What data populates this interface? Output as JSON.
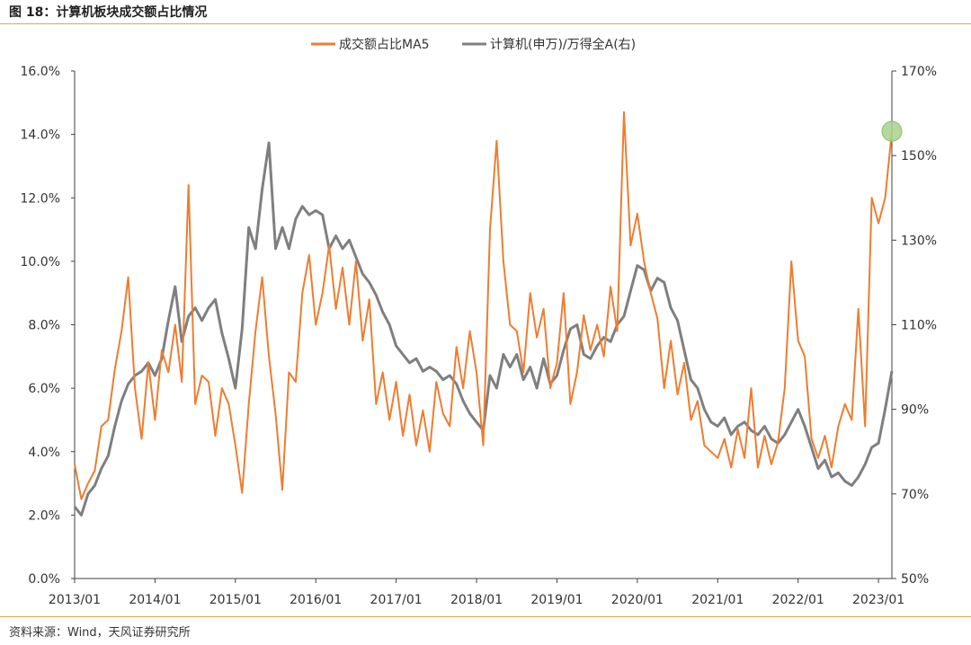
{
  "figure": {
    "title": "图 18：计算机板块成交额占比情况",
    "source": "资料来源：Wind，天风证券研究所"
  },
  "colors": {
    "series_orange": "#ed7d31",
    "series_gray": "#7f7f7f",
    "axis": "#404040",
    "rule": "#e0a84a",
    "highlight": "#a9d18e"
  },
  "chart_data": {
    "type": "line",
    "title": "",
    "xlabel": "",
    "ylabel": "",
    "legend_position": "top-center",
    "grid": false,
    "x_ticks": [
      "2013/01",
      "2014/01",
      "2015/01",
      "2016/01",
      "2017/01",
      "2018/01",
      "2019/01",
      "2020/01",
      "2021/01",
      "2022/01",
      "2023/01"
    ],
    "x_range": [
      "2013/01",
      "2023/03"
    ],
    "y_left": {
      "min": 0,
      "max": 16,
      "ticks": [
        "0.0%",
        "2.0%",
        "4.0%",
        "6.0%",
        "8.0%",
        "10.0%",
        "12.0%",
        "14.0%",
        "16.0%"
      ]
    },
    "y_right": {
      "min": 50,
      "max": 170,
      "ticks": [
        "50%",
        "70%",
        "90%",
        "110%",
        "130%",
        "150%",
        "170%"
      ]
    },
    "series": [
      {
        "name": "成交额占比MA5",
        "axis": "left",
        "unit": "%",
        "points": [
          [
            "2013/01",
            3.6
          ],
          [
            "2013/02",
            2.5
          ],
          [
            "2013/03",
            3.0
          ],
          [
            "2013/04",
            3.4
          ],
          [
            "2013/05",
            4.8
          ],
          [
            "2013/06",
            5.0
          ],
          [
            "2013/07",
            6.6
          ],
          [
            "2013/08",
            7.8
          ],
          [
            "2013/09",
            9.5
          ],
          [
            "2013/10",
            6.0
          ],
          [
            "2013/11",
            4.4
          ],
          [
            "2013/12",
            6.8
          ],
          [
            "2014/01",
            5.0
          ],
          [
            "2014/02",
            7.2
          ],
          [
            "2014/03",
            6.5
          ],
          [
            "2014/04",
            8.0
          ],
          [
            "2014/05",
            6.2
          ],
          [
            "2014/06",
            12.4
          ],
          [
            "2014/07",
            5.5
          ],
          [
            "2014/08",
            6.4
          ],
          [
            "2014/09",
            6.2
          ],
          [
            "2014/10",
            4.5
          ],
          [
            "2014/11",
            6.0
          ],
          [
            "2014/12",
            5.5
          ],
          [
            "2015/01",
            4.2
          ],
          [
            "2015/02",
            2.7
          ],
          [
            "2015/03",
            5.5
          ],
          [
            "2015/04",
            7.8
          ],
          [
            "2015/05",
            9.5
          ],
          [
            "2015/06",
            7.0
          ],
          [
            "2015/07",
            5.2
          ],
          [
            "2015/08",
            2.8
          ],
          [
            "2015/09",
            6.5
          ],
          [
            "2015/10",
            6.2
          ],
          [
            "2015/11",
            9.0
          ],
          [
            "2015/12",
            10.2
          ],
          [
            "2016/01",
            8.0
          ],
          [
            "2016/02",
            9.0
          ],
          [
            "2016/03",
            10.5
          ],
          [
            "2016/04",
            8.5
          ],
          [
            "2016/05",
            9.8
          ],
          [
            "2016/06",
            8.0
          ],
          [
            "2016/07",
            10.0
          ],
          [
            "2016/08",
            7.5
          ],
          [
            "2016/09",
            8.8
          ],
          [
            "2016/10",
            5.5
          ],
          [
            "2016/11",
            6.5
          ],
          [
            "2016/12",
            5.0
          ],
          [
            "2017/01",
            6.2
          ],
          [
            "2017/02",
            4.5
          ],
          [
            "2017/03",
            5.8
          ],
          [
            "2017/04",
            4.2
          ],
          [
            "2017/05",
            5.3
          ],
          [
            "2017/06",
            4.0
          ],
          [
            "2017/07",
            6.2
          ],
          [
            "2017/08",
            5.2
          ],
          [
            "2017/09",
            4.8
          ],
          [
            "2017/10",
            7.3
          ],
          [
            "2017/11",
            6.0
          ],
          [
            "2017/12",
            7.8
          ],
          [
            "2018/01",
            6.5
          ],
          [
            "2018/02",
            4.2
          ],
          [
            "2018/03",
            11.0
          ],
          [
            "2018/04",
            13.8
          ],
          [
            "2018/05",
            10.0
          ],
          [
            "2018/06",
            8.0
          ],
          [
            "2018/07",
            7.8
          ],
          [
            "2018/08",
            6.5
          ],
          [
            "2018/09",
            9.0
          ],
          [
            "2018/10",
            7.6
          ],
          [
            "2018/11",
            8.5
          ],
          [
            "2018/12",
            6.0
          ],
          [
            "2019/01",
            6.8
          ],
          [
            "2019/02",
            9.0
          ],
          [
            "2019/03",
            5.5
          ],
          [
            "2019/04",
            6.5
          ],
          [
            "2019/05",
            8.3
          ],
          [
            "2019/06",
            7.2
          ],
          [
            "2019/07",
            8.0
          ],
          [
            "2019/08",
            7.0
          ],
          [
            "2019/09",
            9.2
          ],
          [
            "2019/10",
            7.8
          ],
          [
            "2019/11",
            14.7
          ],
          [
            "2019/12",
            10.5
          ],
          [
            "2020/01",
            11.5
          ],
          [
            "2020/02",
            10.0
          ],
          [
            "2020/03",
            9.0
          ],
          [
            "2020/04",
            8.2
          ],
          [
            "2020/05",
            6.0
          ],
          [
            "2020/06",
            7.5
          ],
          [
            "2020/07",
            5.8
          ],
          [
            "2020/08",
            6.8
          ],
          [
            "2020/09",
            5.0
          ],
          [
            "2020/10",
            5.6
          ],
          [
            "2020/11",
            4.2
          ],
          [
            "2020/12",
            4.0
          ],
          [
            "2021/01",
            3.8
          ],
          [
            "2021/02",
            4.4
          ],
          [
            "2021/03",
            3.5
          ],
          [
            "2021/04",
            4.7
          ],
          [
            "2021/05",
            3.8
          ],
          [
            "2021/06",
            6.0
          ],
          [
            "2021/07",
            3.5
          ],
          [
            "2021/08",
            4.5
          ],
          [
            "2021/09",
            3.6
          ],
          [
            "2021/10",
            4.3
          ],
          [
            "2021/11",
            6.0
          ],
          [
            "2021/12",
            10.0
          ],
          [
            "2022/01",
            7.5
          ],
          [
            "2022/02",
            7.0
          ],
          [
            "2022/03",
            4.4
          ],
          [
            "2022/04",
            3.8
          ],
          [
            "2022/05",
            4.5
          ],
          [
            "2022/06",
            3.5
          ],
          [
            "2022/07",
            4.8
          ],
          [
            "2022/08",
            5.5
          ],
          [
            "2022/09",
            5.0
          ],
          [
            "2022/10",
            8.5
          ],
          [
            "2022/11",
            4.8
          ],
          [
            "2022/12",
            12.0
          ],
          [
            "2023/01",
            11.2
          ],
          [
            "2023/02",
            12.0
          ],
          [
            "2023/03",
            14.1
          ]
        ]
      },
      {
        "name": "计算机(申万)/万得全A(右)",
        "axis": "right",
        "unit": "%",
        "points": [
          [
            "2013/01",
            67
          ],
          [
            "2013/02",
            65
          ],
          [
            "2013/03",
            70
          ],
          [
            "2013/04",
            72
          ],
          [
            "2013/05",
            76
          ],
          [
            "2013/06",
            79
          ],
          [
            "2013/07",
            86
          ],
          [
            "2013/08",
            92
          ],
          [
            "2013/09",
            96
          ],
          [
            "2013/10",
            98
          ],
          [
            "2013/11",
            99
          ],
          [
            "2013/12",
            101
          ],
          [
            "2014/01",
            98
          ],
          [
            "2014/02",
            102
          ],
          [
            "2014/03",
            111
          ],
          [
            "2014/04",
            119
          ],
          [
            "2014/05",
            106
          ],
          [
            "2014/06",
            112
          ],
          [
            "2014/07",
            114
          ],
          [
            "2014/08",
            111
          ],
          [
            "2014/09",
            114
          ],
          [
            "2014/10",
            116
          ],
          [
            "2014/11",
            108
          ],
          [
            "2014/12",
            102
          ],
          [
            "2015/01",
            95
          ],
          [
            "2015/02",
            109
          ],
          [
            "2015/03",
            133
          ],
          [
            "2015/04",
            128
          ],
          [
            "2015/05",
            142
          ],
          [
            "2015/06",
            153
          ],
          [
            "2015/07",
            128
          ],
          [
            "2015/08",
            133
          ],
          [
            "2015/09",
            128
          ],
          [
            "2015/10",
            135
          ],
          [
            "2015/11",
            138
          ],
          [
            "2015/12",
            136
          ],
          [
            "2016/01",
            137
          ],
          [
            "2016/02",
            136
          ],
          [
            "2016/03",
            128
          ],
          [
            "2016/04",
            131
          ],
          [
            "2016/05",
            128
          ],
          [
            "2016/06",
            130
          ],
          [
            "2016/07",
            126
          ],
          [
            "2016/08",
            122
          ],
          [
            "2016/09",
            120
          ],
          [
            "2016/10",
            117
          ],
          [
            "2016/11",
            113
          ],
          [
            "2016/12",
            110
          ],
          [
            "2017/01",
            105
          ],
          [
            "2017/02",
            103
          ],
          [
            "2017/03",
            101
          ],
          [
            "2017/04",
            102
          ],
          [
            "2017/05",
            99
          ],
          [
            "2017/06",
            100
          ],
          [
            "2017/07",
            99
          ],
          [
            "2017/08",
            97
          ],
          [
            "2017/09",
            98
          ],
          [
            "2017/10",
            96
          ],
          [
            "2017/11",
            92
          ],
          [
            "2017/12",
            89
          ],
          [
            "2018/01",
            87
          ],
          [
            "2018/02",
            85
          ],
          [
            "2018/03",
            98
          ],
          [
            "2018/04",
            95
          ],
          [
            "2018/05",
            103
          ],
          [
            "2018/06",
            100
          ],
          [
            "2018/07",
            103
          ],
          [
            "2018/08",
            97
          ],
          [
            "2018/09",
            100
          ],
          [
            "2018/10",
            95
          ],
          [
            "2018/11",
            102
          ],
          [
            "2018/12",
            96
          ],
          [
            "2019/01",
            98
          ],
          [
            "2019/02",
            104
          ],
          [
            "2019/03",
            109
          ],
          [
            "2019/04",
            110
          ],
          [
            "2019/05",
            103
          ],
          [
            "2019/06",
            102
          ],
          [
            "2019/07",
            105
          ],
          [
            "2019/08",
            107
          ],
          [
            "2019/09",
            106
          ],
          [
            "2019/10",
            110
          ],
          [
            "2019/11",
            112
          ],
          [
            "2019/12",
            118
          ],
          [
            "2020/01",
            124
          ],
          [
            "2020/02",
            123
          ],
          [
            "2020/03",
            118
          ],
          [
            "2020/04",
            121
          ],
          [
            "2020/05",
            120
          ],
          [
            "2020/06",
            114
          ],
          [
            "2020/07",
            111
          ],
          [
            "2020/08",
            104
          ],
          [
            "2020/09",
            97
          ],
          [
            "2020/10",
            95
          ],
          [
            "2020/11",
            90
          ],
          [
            "2020/12",
            87
          ],
          [
            "2021/01",
            86
          ],
          [
            "2021/02",
            88
          ],
          [
            "2021/03",
            84
          ],
          [
            "2021/04",
            86
          ],
          [
            "2021/05",
            87
          ],
          [
            "2021/06",
            85
          ],
          [
            "2021/07",
            84
          ],
          [
            "2021/08",
            86
          ],
          [
            "2021/09",
            83
          ],
          [
            "2021/10",
            82
          ],
          [
            "2021/11",
            84
          ],
          [
            "2021/12",
            87
          ],
          [
            "2022/01",
            90
          ],
          [
            "2022/02",
            86
          ],
          [
            "2022/03",
            81
          ],
          [
            "2022/04",
            76
          ],
          [
            "2022/05",
            78
          ],
          [
            "2022/06",
            74
          ],
          [
            "2022/07",
            75
          ],
          [
            "2022/08",
            73
          ],
          [
            "2022/09",
            72
          ],
          [
            "2022/10",
            74
          ],
          [
            "2022/11",
            77
          ],
          [
            "2022/12",
            81
          ],
          [
            "2023/01",
            82
          ],
          [
            "2023/02",
            90
          ],
          [
            "2023/03",
            99
          ]
        ]
      }
    ],
    "highlight": {
      "series": "成交额占比MA5",
      "x": "2023/03",
      "y": 14.1
    }
  }
}
